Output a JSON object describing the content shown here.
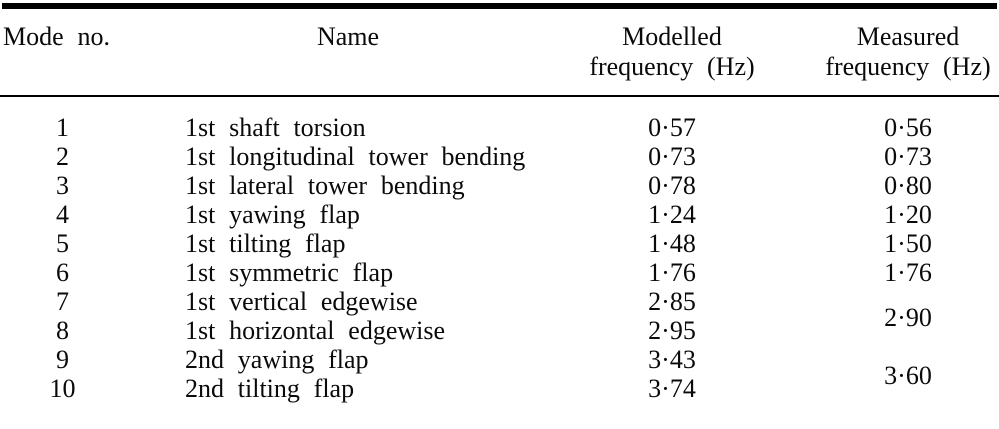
{
  "page": {
    "background": "#ffffff",
    "ink_color": "#0a0a0a",
    "rule_color": "#000000"
  },
  "table": {
    "headers": {
      "mode": "Mode no.",
      "name": "Name",
      "modelled_line1": "Modelled",
      "modelled_line2": "frequency (Hz)",
      "measured_line1": "Measured",
      "measured_line2": "frequency (Hz)"
    },
    "rows": [
      {
        "mode": "1",
        "name": "1st shaft torsion",
        "modelled": "0·57",
        "measured": "0·56"
      },
      {
        "mode": "2",
        "name": "1st longitudinal tower bending",
        "modelled": "0·73",
        "measured": "0·73"
      },
      {
        "mode": "3",
        "name": "1st lateral tower bending",
        "modelled": "0·78",
        "measured": "0·80"
      },
      {
        "mode": "4",
        "name": "1st yawing flap",
        "modelled": "1·24",
        "measured": "1·20"
      },
      {
        "mode": "5",
        "name": "1st tilting flap",
        "modelled": "1·48",
        "measured": "1·50"
      },
      {
        "mode": "6",
        "name": "1st symmetric flap",
        "modelled": "1·76",
        "measured": "1·76"
      },
      {
        "mode": "7",
        "name": "1st vertical edgewise",
        "modelled": "2·85",
        "measured": null
      },
      {
        "mode": "8",
        "name": "1st horizontal edgewise",
        "modelled": "2·95",
        "measured": null
      },
      {
        "mode": "9",
        "name": "2nd yawing flap",
        "modelled": "3·43",
        "measured": null
      },
      {
        "mode": "10",
        "name": "2nd tilting flap",
        "modelled": "3·74",
        "measured": null
      }
    ],
    "merged_measured": [
      {
        "value": "2·90",
        "rows": [
          7,
          8
        ]
      },
      {
        "value": "3·60",
        "rows": [
          9,
          10
        ]
      }
    ]
  },
  "chart_data": {
    "type": "table",
    "columns": [
      "Mode no.",
      "Name",
      "Modelled frequency (Hz)",
      "Measured frequency (Hz)"
    ],
    "rows": [
      [
        "1",
        "1st shaft torsion",
        "0·57",
        "0·56"
      ],
      [
        "2",
        "1st longitudinal tower bending",
        "0·73",
        "0·73"
      ],
      [
        "3",
        "1st lateral tower bending",
        "0·78",
        "0·80"
      ],
      [
        "4",
        "1st yawing flap",
        "1·24",
        "1·20"
      ],
      [
        "5",
        "1st tilting flap",
        "1·48",
        "1·50"
      ],
      [
        "6",
        "1st symmetric flap",
        "1·76",
        "1·76"
      ],
      [
        "7",
        "1st vertical edgewise",
        "2·85",
        "2·90 (merged rows 7–8)"
      ],
      [
        "8",
        "1st horizontal edgewise",
        "2·95",
        "2·90 (merged rows 7–8)"
      ],
      [
        "9",
        "2nd yawing flap",
        "3·43",
        "3·60 (merged rows 9–10)"
      ],
      [
        "10",
        "2nd tilting flap",
        "3·74",
        "3·60 (merged rows 9–10)"
      ]
    ]
  }
}
